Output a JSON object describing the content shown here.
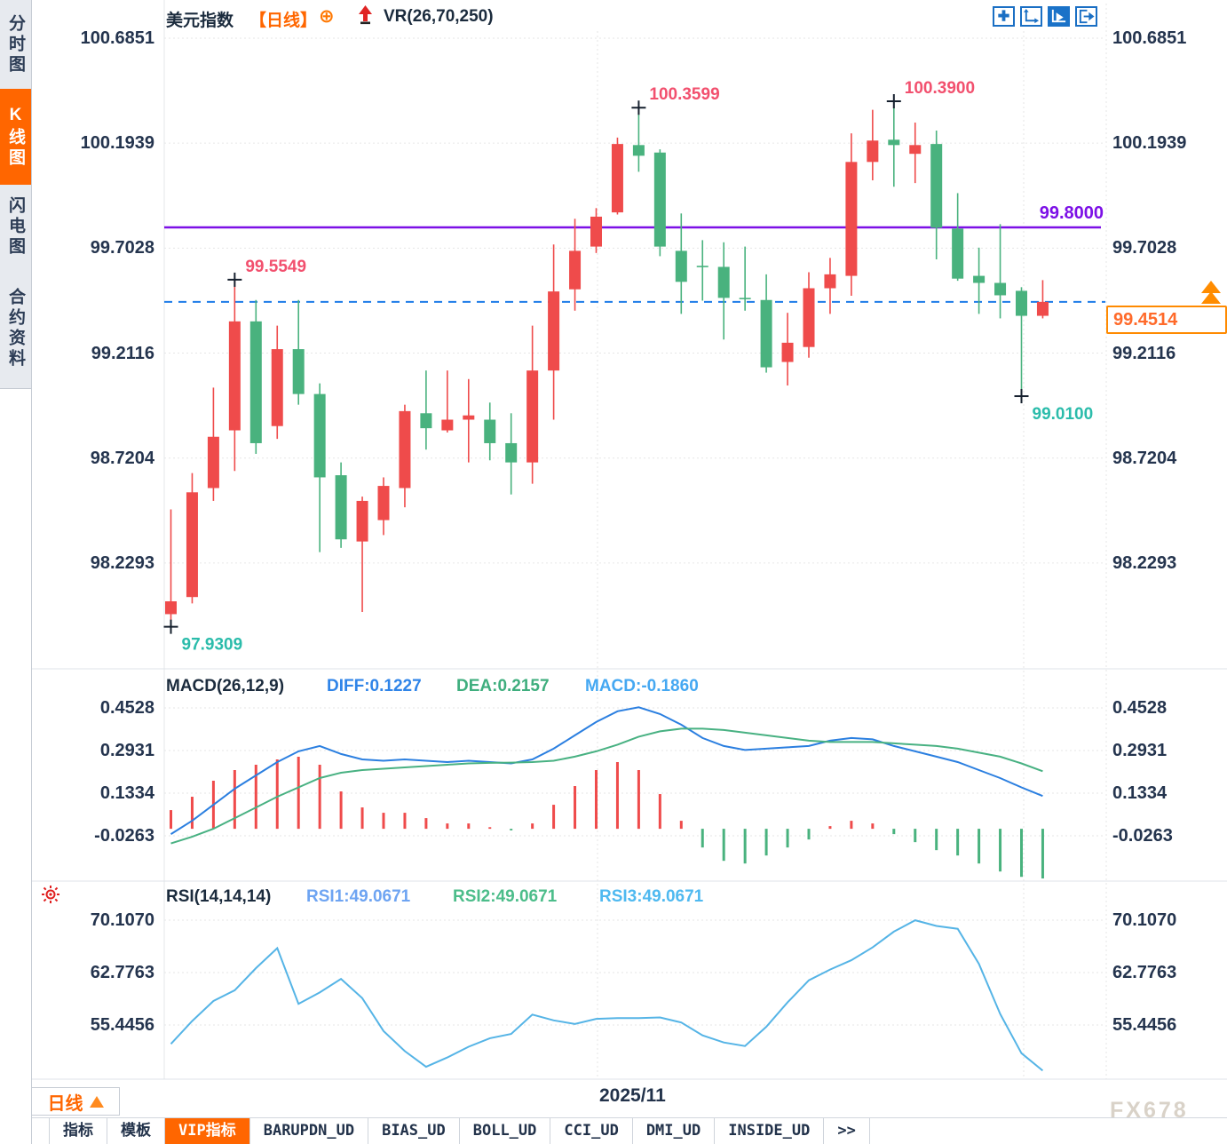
{
  "colors": {
    "up": "#ef4b4b",
    "down": "#49b27e",
    "pink": "#f2506e",
    "teal": "#2bbcab",
    "diff_line": "#2b7fe0",
    "dea_line": "#48b182",
    "rsi_line": "#55b4e6",
    "dashed_blue": "#1d7be8",
    "purple": "#7c10e6",
    "accent_orange": "#ff6600",
    "marker": "#16202e"
  },
  "sidebar": {
    "items": [
      {
        "label": "分时图",
        "active": false
      },
      {
        "label": "K线图",
        "active": true
      },
      {
        "label": "闪电图",
        "active": false
      },
      {
        "label": "合约资料",
        "active": false
      }
    ]
  },
  "header": {
    "symbol": "美元指数",
    "period_tag": "【日线】",
    "plus_icon": "⊕",
    "vr_label": "VR(26,70,250)"
  },
  "toolbar": {
    "icons": [
      {
        "name": "crosshair",
        "active": false
      },
      {
        "name": "axis-scale",
        "active": false
      },
      {
        "name": "axis-auto",
        "active": true
      },
      {
        "name": "pan-right",
        "active": false
      }
    ]
  },
  "price_panel": {
    "axis_labels": [
      "100.6851",
      "100.1939",
      "99.7028",
      "99.2116",
      "98.7204",
      "98.2293"
    ],
    "purple_label": "99.8000",
    "price_box_label": "99.4514"
  },
  "macd_panel": {
    "title": "MACD(26,12,9)",
    "diff_label": "DIFF:0.1227",
    "dea_label": "DEA:0.2157",
    "macd_label": "MACD:-0.1860",
    "axis_labels": [
      "0.4528",
      "0.2931",
      "0.1334",
      "-0.0263"
    ]
  },
  "rsi_panel": {
    "title": "RSI(14,14,14)",
    "rsi1_label": "RSI1:49.0671",
    "rsi2_label": "RSI2:49.0671",
    "rsi3_label": "RSI3:49.0671",
    "axis_labels": [
      "70.1070",
      "62.7763",
      "55.4456"
    ]
  },
  "footer": {
    "period_button": "日线",
    "date_label": "2025/11",
    "watermark": "FX678",
    "tabs": [
      {
        "label": "指标",
        "active": false
      },
      {
        "label": "模板",
        "active": false
      },
      {
        "label": "VIP指标",
        "active": true
      },
      {
        "label": "BARUPDN_UD",
        "active": false
      },
      {
        "label": "BIAS_UD",
        "active": false
      },
      {
        "label": "BOLL_UD",
        "active": false
      },
      {
        "label": "CCI_UD",
        "active": false
      },
      {
        "label": "DMI_UD",
        "active": false
      },
      {
        "label": "INSIDE_UD",
        "active": false
      },
      {
        "label": ">>",
        "active": false
      }
    ]
  },
  "chart_data": {
    "type": "candlestick",
    "symbol": "美元指数",
    "period": "日线",
    "visible_date_label": "2025/11",
    "price_axis_ticks": [
      100.6851,
      100.1939,
      99.7028,
      99.2116,
      98.7204,
      98.2293
    ],
    "candles": [
      [
        97.99,
        98.48,
        97.931,
        98.05
      ],
      [
        98.07,
        98.65,
        98.04,
        98.56
      ],
      [
        98.58,
        99.05,
        98.52,
        98.82
      ],
      [
        98.85,
        99.5549,
        98.66,
        99.36
      ],
      [
        99.36,
        99.46,
        98.74,
        98.79
      ],
      [
        98.87,
        99.34,
        98.81,
        99.23
      ],
      [
        99.23,
        99.46,
        98.97,
        99.02
      ],
      [
        99.02,
        99.07,
        98.28,
        98.63
      ],
      [
        98.64,
        98.7,
        98.3,
        98.34
      ],
      [
        98.33,
        98.54,
        98.0,
        98.52
      ],
      [
        98.43,
        98.63,
        98.36,
        98.59
      ],
      [
        98.58,
        98.97,
        98.49,
        98.94
      ],
      [
        98.93,
        99.13,
        98.76,
        98.86
      ],
      [
        98.85,
        99.13,
        98.84,
        98.9
      ],
      [
        98.9,
        99.09,
        98.7,
        98.92
      ],
      [
        98.9,
        98.98,
        98.71,
        98.79
      ],
      [
        98.79,
        98.93,
        98.55,
        98.7
      ],
      [
        98.7,
        99.34,
        98.6,
        99.13
      ],
      [
        99.13,
        99.72,
        98.9,
        99.5
      ],
      [
        99.51,
        99.84,
        99.41,
        99.69
      ],
      [
        99.71,
        99.89,
        99.68,
        99.85
      ],
      [
        99.87,
        100.22,
        99.86,
        100.19
      ],
      [
        100.185,
        100.3599,
        100.06,
        100.135
      ],
      [
        100.15,
        100.165,
        99.665,
        99.71
      ],
      [
        99.69,
        99.865,
        99.395,
        99.545
      ],
      [
        99.62,
        99.74,
        99.457,
        99.615
      ],
      [
        99.615,
        99.73,
        99.275,
        99.47
      ],
      [
        99.47,
        99.71,
        99.41,
        99.465
      ],
      [
        99.46,
        99.58,
        99.12,
        99.145
      ],
      [
        99.17,
        99.4,
        99.06,
        99.26
      ],
      [
        99.24,
        99.59,
        99.19,
        99.515
      ],
      [
        99.515,
        99.657,
        99.395,
        99.58
      ],
      [
        99.573,
        100.24,
        99.48,
        100.106
      ],
      [
        100.106,
        100.35,
        100.02,
        100.206
      ],
      [
        100.21,
        100.39,
        99.99,
        100.185
      ],
      [
        100.144,
        100.29,
        100.007,
        100.185
      ],
      [
        100.19,
        100.253,
        99.65,
        99.798
      ],
      [
        99.794,
        99.96,
        99.55,
        99.56
      ],
      [
        99.573,
        99.705,
        99.395,
        99.54
      ],
      [
        99.54,
        99.815,
        99.374,
        99.482
      ],
      [
        99.503,
        99.52,
        99.01,
        99.386
      ],
      [
        99.386,
        99.553,
        99.374,
        99.4514
      ]
    ],
    "overlays": {
      "horizontal_line": 99.8,
      "last_price": 99.4514
    },
    "annotations": [
      {
        "text": "97.9309",
        "candle": 0,
        "at": "low",
        "color": "teal"
      },
      {
        "text": "99.5549",
        "candle": 3,
        "at": "high",
        "color": "pink"
      },
      {
        "text": "100.3599",
        "candle": 22,
        "at": "high",
        "color": "pink"
      },
      {
        "text": "100.3900",
        "candle": 34,
        "at": "high",
        "color": "pink"
      },
      {
        "text": "99.0100",
        "candle": 40,
        "at": "low",
        "color": "teal"
      }
    ],
    "macd": {
      "params": [
        26,
        12,
        9
      ],
      "diff_last": 0.1227,
      "dea_last": 0.2157,
      "macd_last": -0.186,
      "axis_ticks": [
        0.4528,
        0.2931,
        0.1334,
        -0.0263
      ],
      "diff": [
        -0.02,
        0.03,
        0.09,
        0.15,
        0.2,
        0.25,
        0.29,
        0.31,
        0.28,
        0.26,
        0.255,
        0.26,
        0.255,
        0.25,
        0.255,
        0.25,
        0.245,
        0.26,
        0.3,
        0.35,
        0.4,
        0.44,
        0.455,
        0.43,
        0.39,
        0.34,
        0.31,
        0.295,
        0.3,
        0.305,
        0.31,
        0.33,
        0.34,
        0.335,
        0.31,
        0.29,
        0.27,
        0.25,
        0.22,
        0.19,
        0.155,
        0.1227
      ],
      "dea": [
        -0.055,
        -0.03,
        0,
        0.04,
        0.08,
        0.12,
        0.155,
        0.19,
        0.21,
        0.22,
        0.225,
        0.23,
        0.235,
        0.24,
        0.245,
        0.247,
        0.248,
        0.25,
        0.255,
        0.27,
        0.29,
        0.315,
        0.345,
        0.365,
        0.375,
        0.375,
        0.37,
        0.36,
        0.35,
        0.34,
        0.33,
        0.325,
        0.325,
        0.325,
        0.32,
        0.315,
        0.31,
        0.3,
        0.285,
        0.27,
        0.245,
        0.2157
      ]
    },
    "rsi": {
      "params": [
        14,
        14,
        14
      ],
      "last": 49.0671,
      "axis_ticks": [
        70.107,
        62.7763,
        55.4456
      ],
      "values": [
        52.8,
        56,
        58.8,
        60.3,
        63.4,
        66.2,
        58.4,
        60,
        61.9,
        59.2,
        54.6,
        51.8,
        49.6,
        50.9,
        52.4,
        53.6,
        54.2,
        56.9,
        56.1,
        55.6,
        56.3,
        56.4,
        56.4,
        56.5,
        55.8,
        54,
        53,
        52.5,
        55.2,
        58.6,
        61.7,
        63.2,
        64.5,
        66.3,
        68.5,
        70.1,
        69.3,
        68.9,
        64,
        57,
        51.5,
        49.0671
      ]
    }
  }
}
